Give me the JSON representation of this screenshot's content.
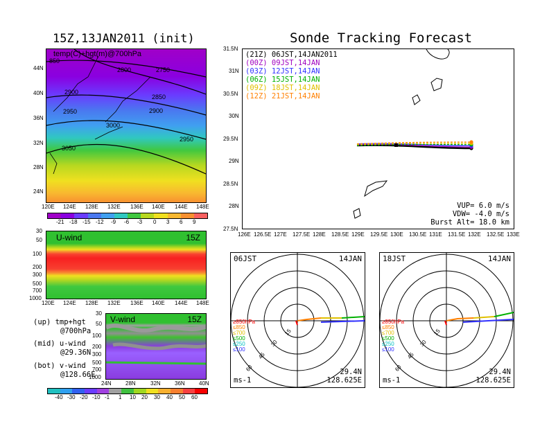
{
  "main_title": "Sonde Tracking Forecast",
  "left_title": "15Z,13JAN2011 (init)",
  "upper_map": {
    "label": "temp(C)+hgt(m)@700hPa",
    "lat_ticks": [
      "44N",
      "40N",
      "36N",
      "32N",
      "28N",
      "24N"
    ],
    "lon_ticks": [
      "120E",
      "124E",
      "128E",
      "132E",
      "136E",
      "140E",
      "144E",
      "148E"
    ],
    "contours": [
      "850",
      "2800",
      "2750",
      "2900",
      "2850",
      "2950",
      "2900",
      "3000",
      "2950",
      "3050"
    ]
  },
  "temp_colorbar": [
    "-21",
    "-18",
    "-15",
    "-12",
    "-9",
    "-6",
    "-3",
    "0",
    "3",
    "6",
    "9"
  ],
  "uwind": {
    "label": "U-wind",
    "time": "15Z",
    "p_ticks": [
      "30",
      "50",
      "100",
      "200",
      "300",
      "500",
      "700",
      "1000"
    ],
    "lon_ticks": [
      "120E",
      "124E",
      "128E",
      "132E",
      "136E",
      "140E",
      "144E",
      "148E"
    ]
  },
  "vwind": {
    "label": "V-wind",
    "time": "15Z",
    "p_ticks": [
      "30",
      "50",
      "100",
      "200",
      "300",
      "500",
      "700",
      "1000"
    ],
    "lat_ticks": [
      "24N",
      "28N",
      "32N",
      "36N",
      "40N"
    ]
  },
  "legend_notes": [
    {
      "line1": "(up) tmp+hgt",
      "line2": "@700hPa"
    },
    {
      "line1": "(mid) u-wind",
      "line2": "@29.36N"
    },
    {
      "line1": "(bot) v-wind",
      "line2": "@128.66E"
    }
  ],
  "wind_colorbar": [
    "-40",
    "-30",
    "-20",
    "-10",
    "-1",
    "1",
    "10",
    "20",
    "30",
    "40",
    "50",
    "60"
  ],
  "track": {
    "lat_ticks": [
      "31.5N",
      "31N",
      "30.5N",
      "30N",
      "29.5N",
      "29N",
      "28.5N",
      "28N",
      "27.5N"
    ],
    "lon_ticks": [
      "126E",
      "126.5E",
      "127E",
      "127.5E",
      "128E",
      "128.5E",
      "129E",
      "129.5E",
      "130E",
      "130.5E",
      "131E",
      "131.5E",
      "132E",
      "132.5E",
      "133E"
    ],
    "launches": [
      {
        "text": "(21Z) 06JST,14JAN2011",
        "color": "#000000"
      },
      {
        "text": "(00Z) 09JST,14JAN",
        "color": "#a000c0"
      },
      {
        "text": "(03Z) 12JST,14JAN",
        "color": "#3030ff"
      },
      {
        "text": "(06Z) 15JST,14JAN",
        "color": "#00b000"
      },
      {
        "text": "(09Z) 18JST,14JAN",
        "color": "#e0c000"
      },
      {
        "text": "(12Z) 21JST,14JAN",
        "color": "#ff8000"
      }
    ],
    "params": [
      "VUP= 6.0 m/s",
      "VDW= -4.0 m/s",
      "Burst Alt= 18.0 km"
    ]
  },
  "hodo_left": {
    "time": "06JST",
    "date": "14JAN",
    "lat": "29.4N",
    "lon": "128.625E",
    "unit": "ms-1",
    "rings": [
      "15",
      "30",
      "45",
      "60"
    ],
    "levels": [
      {
        "t": "≥850hPa",
        "c": "#ff0000"
      },
      {
        "t": "≤850",
        "c": "#ff8000"
      },
      {
        "t": "≤700",
        "c": "#e0c000"
      },
      {
        "t": "≤500",
        "c": "#00b000"
      },
      {
        "t": "≤250",
        "c": "#00c0c0"
      },
      {
        "t": "≤100",
        "c": "#3030ff"
      }
    ]
  },
  "hodo_right": {
    "time": "18JST",
    "date": "14JAN",
    "lat": "29.4N",
    "lon": "128.625E",
    "unit": "ms-1",
    "rings": [
      "15",
      "30",
      "45",
      "60"
    ],
    "levels": [
      {
        "t": "≥850hPa",
        "c": "#ff0000"
      },
      {
        "t": "≤850",
        "c": "#ff8000"
      },
      {
        "t": "≤700",
        "c": "#e0c000"
      },
      {
        "t": "≤500",
        "c": "#00b000"
      },
      {
        "t": "≤250",
        "c": "#00c0c0"
      },
      {
        "t": "≤100",
        "c": "#3030ff"
      }
    ]
  }
}
